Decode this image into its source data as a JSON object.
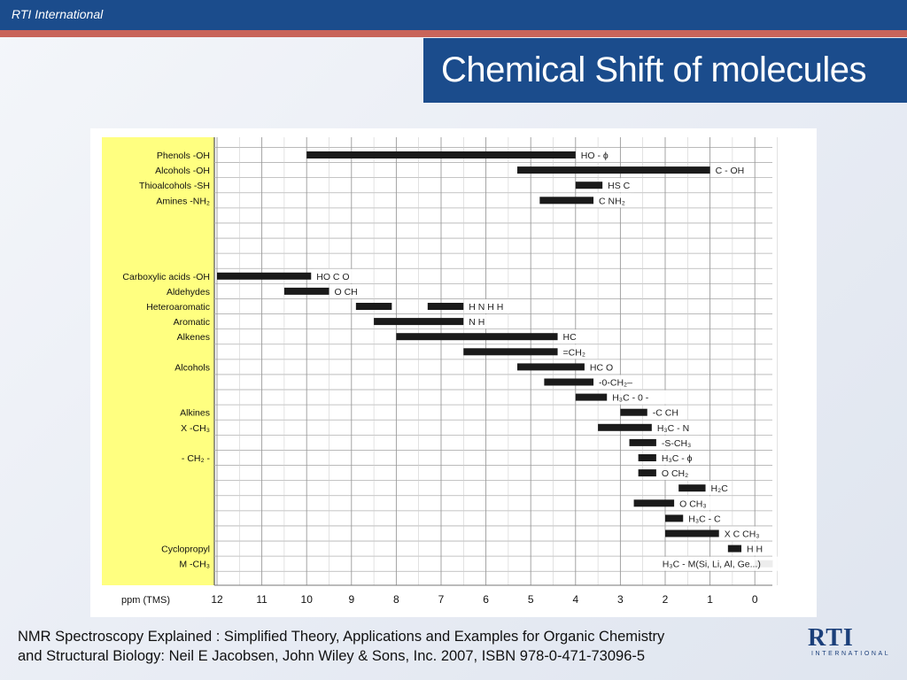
{
  "header": {
    "org": "RTI International"
  },
  "title": "Chemical Shift of molecules",
  "footer": {
    "reference_line1": "NMR Spectroscopy Explained : Simplified Theory, Applications and Examples for Organic Chemistry",
    "reference_line2": "and Structural Biology: Neil E Jacobsen, John Wiley & Sons, Inc. 2007, ISBN 978-0-471-73096-5",
    "logo_main": "RTI",
    "logo_sub": "INTERNATIONAL"
  },
  "colors": {
    "band": "#1b4c8c",
    "accent": "#c8645a",
    "label_panel": "#ffff80",
    "bar": "#1a1a1a"
  },
  "chart_data": {
    "type": "bar",
    "orientation": "horizontal-range",
    "xlabel": "ppm (TMS)",
    "x_ticks": [
      12,
      11,
      10,
      9,
      8,
      7,
      6,
      5,
      4,
      3,
      2,
      1,
      0
    ],
    "xlim": [
      12,
      0
    ],
    "grid": true,
    "rows": [
      {
        "label": "Phenols -OH",
        "ranges": [
          [
            10.0,
            4.0
          ]
        ],
        "annotation": "HO - ϕ"
      },
      {
        "label": "Alcohols -OH",
        "ranges": [
          [
            5.3,
            1.0
          ]
        ],
        "annotation": "C - OH"
      },
      {
        "label": "Thioalcohols -SH",
        "ranges": [
          [
            4.0,
            3.4
          ]
        ],
        "annotation": "HS C"
      },
      {
        "label": "Amines -NH₂",
        "ranges": [
          [
            4.8,
            3.6
          ]
        ],
        "annotation": "C NH₂"
      },
      {
        "label": "",
        "ranges": []
      },
      {
        "label": "",
        "ranges": []
      },
      {
        "label": "",
        "ranges": []
      },
      {
        "label": "",
        "ranges": []
      },
      {
        "label": "Carboxylic acids -OH",
        "ranges": [
          [
            12.0,
            9.9
          ]
        ],
        "annotation": "HO C O"
      },
      {
        "label": "Aldehydes",
        "ranges": [
          [
            10.5,
            9.5
          ]
        ],
        "annotation": "O CH"
      },
      {
        "label": "Heteroaromatic",
        "ranges": [
          [
            8.9,
            8.1
          ],
          [
            7.3,
            6.5
          ]
        ],
        "annotation": "H N H H"
      },
      {
        "label": "Aromatic",
        "ranges": [
          [
            8.5,
            6.5
          ]
        ],
        "annotation": "N H"
      },
      {
        "label": "Alkenes",
        "ranges": [
          [
            8.0,
            4.4
          ]
        ],
        "annotation": "HC"
      },
      {
        "label": "",
        "ranges": [
          [
            6.5,
            4.4
          ]
        ],
        "annotation": "=CH₂"
      },
      {
        "label": "Alcohols",
        "ranges": [
          [
            5.3,
            3.8
          ]
        ],
        "annotation": "HC O"
      },
      {
        "label": "",
        "ranges": [
          [
            4.7,
            3.6
          ]
        ],
        "annotation": "-0-CH₂–"
      },
      {
        "label": "",
        "ranges": [
          [
            4.0,
            3.3
          ]
        ],
        "annotation": "H₃C - 0 -"
      },
      {
        "label": "Alkines",
        "ranges": [
          [
            3.0,
            2.4
          ]
        ],
        "annotation": "-C CH"
      },
      {
        "label": "X -CH₃",
        "ranges": [
          [
            3.5,
            2.3
          ]
        ],
        "annotation": "H₃C - N"
      },
      {
        "label": "",
        "ranges": [
          [
            2.8,
            2.2
          ]
        ],
        "annotation": "-S-CH₃"
      },
      {
        "label": "- CH₂ -",
        "ranges": [
          [
            2.6,
            2.2
          ]
        ],
        "annotation": "H₃C - ϕ"
      },
      {
        "label": "",
        "ranges": [
          [
            2.6,
            2.2
          ]
        ],
        "annotation": "O CH₂"
      },
      {
        "label": "",
        "ranges": [
          [
            1.7,
            1.1
          ]
        ],
        "annotation": "H₂C"
      },
      {
        "label": "",
        "ranges": [
          [
            2.7,
            1.8
          ]
        ],
        "annotation": "O CH₃"
      },
      {
        "label": "",
        "ranges": [
          [
            2.0,
            1.6
          ]
        ],
        "annotation": "H₃C - C"
      },
      {
        "label": "",
        "ranges": [
          [
            2.0,
            0.8
          ]
        ],
        "annotation": "X C CH₃"
      },
      {
        "label": "Cyclopropyl",
        "ranges": [
          [
            0.6,
            0.3
          ]
        ],
        "annotation": "H H"
      },
      {
        "label": "M -CH₃",
        "ranges": [
          [
            0.0,
            -0.4
          ]
        ],
        "annotation": "H₃C - M(Si, Li, Al, Ge...)"
      }
    ]
  }
}
